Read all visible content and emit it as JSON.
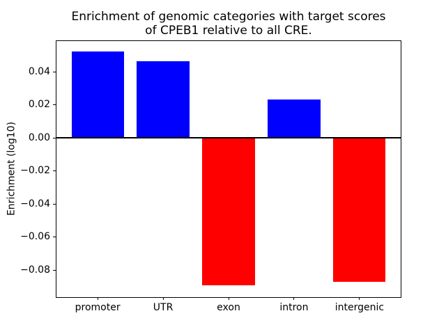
{
  "chart_data": {
    "type": "bar",
    "title": "Enrichment of genomic categories with target scores\nof CPEB1 relative to all CRE.",
    "ylabel": "Enrichment (log10)",
    "categories": [
      "promoter",
      "UTR",
      "exon",
      "intron",
      "intergenic"
    ],
    "values": [
      0.0525,
      0.0465,
      -0.0893,
      0.0235,
      -0.0872
    ],
    "bar_colors": [
      "#0000ff",
      "#0000ff",
      "#ff0000",
      "#0000ff",
      "#ff0000"
    ],
    "positive_color": "#0000ff",
    "negative_color": "#ff0000",
    "yticks": [
      0.04,
      0.02,
      0.0,
      -0.02,
      -0.04,
      -0.06,
      -0.08
    ],
    "ylim": [
      -0.0965,
      0.0593
    ],
    "xlim": [
      -0.64,
      4.64
    ],
    "bar_width": 0.8,
    "zero_line": true,
    "grid": false,
    "legend": "none",
    "axis_color": "#000000",
    "background_color": "#ffffff"
  }
}
